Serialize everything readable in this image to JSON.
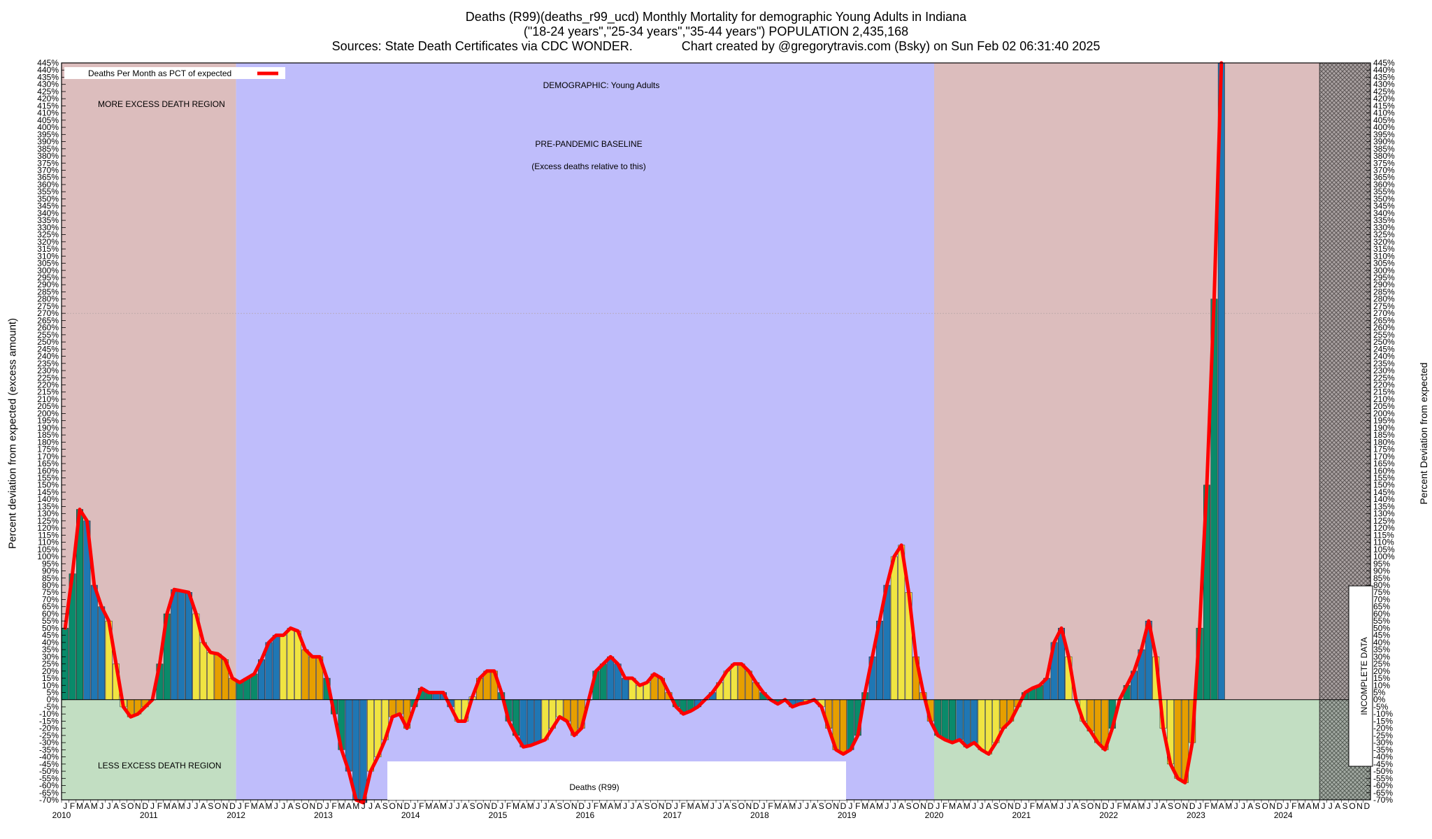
{
  "title": {
    "line1": "Deaths (R99)(deaths_r99_ucd) Monthly Mortality for demographic Young Adults in Indiana",
    "line2": "(\"18-24 years\",\"25-34 years\",\"35-44 years\") POPULATION 2,435,168",
    "line3": "Sources: State Death Certificates via CDC WONDER.              Chart created by @gregorytravis.com (Bsky) on Sun Feb 02 06:31:40 2025"
  },
  "y_axis_left_label": "Percent deviation from expected (excess amount)",
  "y_axis_right_label": "Percent Deviation from expected",
  "legend": {
    "label": "Deaths Per Month as PCT of expected",
    "color": "#ff0000"
  },
  "annotations": {
    "demographic": "DEMOGRAPHIC: Young Adults",
    "baseline_1": "PRE-PANDEMIC BASELINE",
    "baseline_2": "(Excess deaths relative to this)",
    "more_excess": "MORE EXCESS DEATH REGION",
    "less_excess": "LESS EXCESS DEATH REGION",
    "cause_box": "Deaths (R99)",
    "incomplete": "INCOMPLETE DATA"
  },
  "colors": {
    "more_region": "#dcbdbd",
    "less_region": "#c2dec2",
    "baseline_region": "#bfbdfb",
    "incomplete_hatch": "#555555",
    "line": "#ff0000",
    "bar_palette": [
      "#0a8a6a",
      "#1f77b4",
      "#f0e442",
      "#e69f00"
    ]
  },
  "chart_data": {
    "type": "bar",
    "description_of_encoding": "",
    "ylim": [
      -70,
      445
    ],
    "ytick_step": 5,
    "ytick_suffix": "%",
    "baseline_years": [
      2012,
      2019
    ],
    "incomplete_from": "2024-06",
    "month_letters": [
      "J",
      "F",
      "M",
      "A",
      "M",
      "J",
      "J",
      "A",
      "S",
      "O",
      "N",
      "D"
    ],
    "years": [
      2010,
      2011,
      2012,
      2013,
      2014,
      2015,
      2016,
      2017,
      2018,
      2019,
      2020,
      2021,
      2022,
      2023,
      2024
    ],
    "series": [
      {
        "name": "Deaths Per Month as PCT of expected",
        "values": [
          50,
          88,
          133,
          125,
          80,
          65,
          55,
          25,
          -5,
          -12,
          -10,
          -5,
          0,
          25,
          60,
          77,
          76,
          75,
          60,
          40,
          33,
          32,
          28,
          15,
          12,
          15,
          18,
          28,
          40,
          45,
          45,
          50,
          48,
          35,
          30,
          30,
          15,
          -10,
          -35,
          -50,
          -70,
          -72,
          -50,
          -40,
          -28,
          -12,
          -10,
          -20,
          -5,
          8,
          5,
          5,
          5,
          -5,
          -15,
          -15,
          2,
          15,
          20,
          20,
          5,
          -15,
          -25,
          -33,
          -32,
          -30,
          -28,
          -20,
          -12,
          -15,
          -25,
          -20,
          0,
          20,
          25,
          30,
          25,
          15,
          15,
          10,
          12,
          18,
          15,
          5,
          -5,
          -10,
          -8,
          -5,
          0,
          5,
          12,
          20,
          25,
          25,
          20,
          12,
          5,
          0,
          -3,
          0,
          -5,
          -3,
          -2,
          0,
          -5,
          -20,
          -35,
          -38,
          -35,
          -25,
          5,
          30,
          55,
          80,
          100,
          108,
          75,
          30,
          5,
          -15,
          -25,
          -28,
          -30,
          -28,
          -33,
          -30,
          -35,
          -38,
          -30,
          -20,
          -15,
          -5,
          5,
          8,
          10,
          15,
          40,
          50,
          30,
          0,
          -15,
          -22,
          -30,
          -35,
          -20,
          0,
          10,
          20,
          35,
          55,
          30,
          -20,
          -45,
          -55,
          -58,
          -30,
          50,
          150,
          280,
          445
        ]
      }
    ]
  }
}
